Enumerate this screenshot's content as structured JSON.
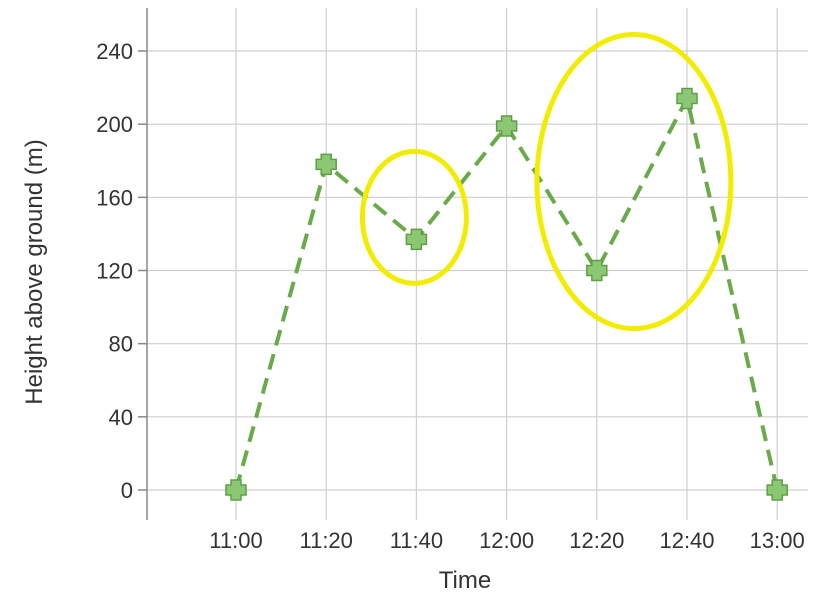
{
  "chart_data": {
    "type": "line",
    "title": "",
    "xlabel": "Time",
    "ylabel": "Height above ground (m)",
    "x": [
      "11:00",
      "11:20",
      "11:40",
      "12:00",
      "12:20",
      "12:40",
      "13:00"
    ],
    "series": [
      {
        "values": [
          0,
          178,
          137,
          199,
          120,
          214,
          0
        ]
      }
    ],
    "ylim": [
      0,
      240
    ],
    "yticks": [
      "0",
      "40",
      "80",
      "120",
      "160",
      "200",
      "240"
    ],
    "grid": true,
    "line_color": "#6aaa4a",
    "marker": "plus",
    "highlight_color": "#f2ec00",
    "highlights": [
      {
        "around": [
          "11:40"
        ]
      },
      {
        "around": [
          "12:20",
          "12:40"
        ]
      }
    ]
  }
}
